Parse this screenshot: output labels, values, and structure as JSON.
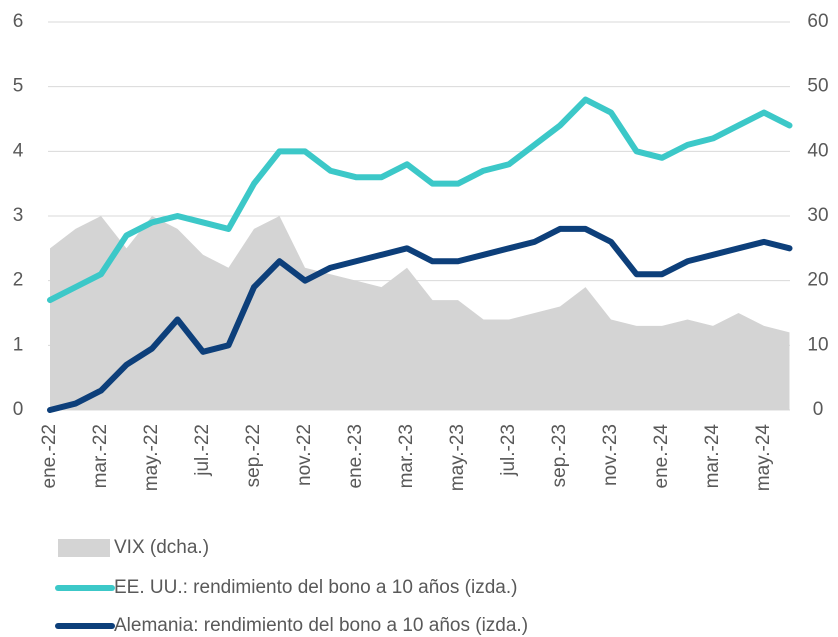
{
  "chart_data": {
    "type": "line",
    "categories": [
      "ene.-22",
      null,
      "mar.-22",
      null,
      "may.-22",
      null,
      "jul.-22",
      null,
      "sep.-22",
      null,
      "nov.-22",
      null,
      "ene.-23",
      null,
      "mar.-23",
      null,
      "may.-23",
      null,
      "jul.-23",
      null,
      "sep.-23",
      null,
      "nov.-23",
      null,
      "ene.-24",
      null,
      "mar.-24",
      null,
      "may.-24",
      null
    ],
    "series": [
      {
        "name": "VIX (dcha.)",
        "color": "#d4d4d4",
        "kind": "area",
        "axis": "y2",
        "values": [
          25,
          28,
          30,
          25,
          30,
          28,
          24,
          22,
          28,
          30,
          22,
          21,
          20,
          19,
          22,
          17,
          17,
          14,
          14,
          15,
          16,
          19,
          14,
          13,
          13,
          14,
          13,
          15,
          13,
          12
        ]
      },
      {
        "name": "EE. UU.: rendimiento del bono a 10 años (izda.)",
        "color": "#3cc8c8",
        "kind": "line",
        "values": [
          1.7,
          1.9,
          2.1,
          2.7,
          2.9,
          3.0,
          2.9,
          2.8,
          3.5,
          4.0,
          4.0,
          3.7,
          3.6,
          3.6,
          3.8,
          3.5,
          3.5,
          3.7,
          3.8,
          4.1,
          4.4,
          4.8,
          4.6,
          4.0,
          3.9,
          4.1,
          4.2,
          4.4,
          4.6,
          4.4
        ]
      },
      {
        "name": "Alemania: rendimiento del bono a 10 años (izda.)",
        "color": "#0d3f7a",
        "kind": "line",
        "values": [
          0.0,
          0.1,
          0.3,
          0.7,
          0.95,
          1.4,
          0.9,
          1.0,
          1.9,
          2.3,
          2.0,
          2.2,
          2.3,
          2.4,
          2.5,
          2.3,
          2.3,
          2.4,
          2.5,
          2.6,
          2.8,
          2.8,
          2.6,
          2.1,
          2.1,
          2.3,
          2.4,
          2.5,
          2.6,
          2.5
        ]
      }
    ],
    "ylim": [
      0,
      6
    ],
    "yticks": [
      0,
      1,
      2,
      3,
      4,
      5,
      6
    ],
    "y2lim": [
      0,
      60
    ],
    "y2ticks": [
      0,
      10,
      20,
      30,
      40,
      50,
      60
    ],
    "grid": true,
    "legend": "bottom"
  }
}
